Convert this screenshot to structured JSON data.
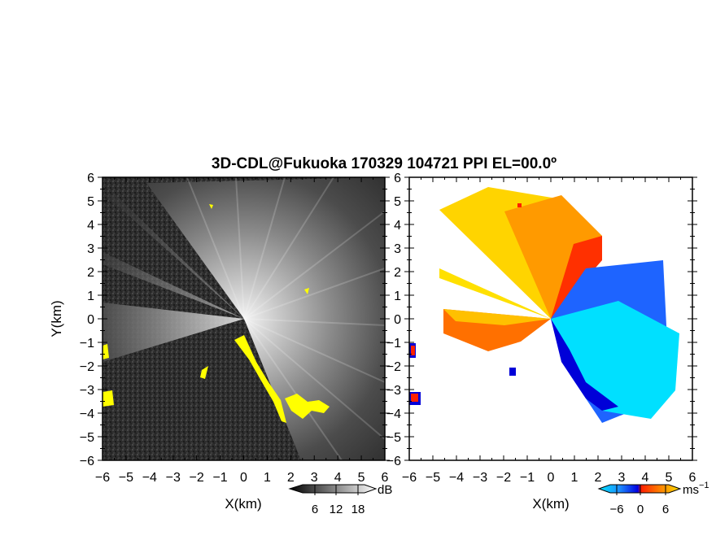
{
  "chart_data": {
    "type": "heatmap",
    "title": "3D-CDL@Fukuoka 170329 104721 PPI EL=00.0º",
    "panels": [
      {
        "id": "left",
        "quantity": "backscatter intensity",
        "colormap": "grayscale with yellow overlay",
        "xlabel": "X(km)",
        "ylabel": "Y(km)",
        "xlim": [
          -6,
          6
        ],
        "ylim": [
          -6,
          6
        ],
        "xticks": [
          "−6",
          "−5",
          "−4",
          "−3",
          "−2",
          "−1",
          "0",
          "1",
          "2",
          "3",
          "4",
          "5",
          "6"
        ],
        "yticks": [
          "6",
          "5",
          "4",
          "3",
          "2",
          "1",
          "0",
          "−1",
          "−2",
          "−3",
          "−4",
          "−5",
          "−6"
        ],
        "colorbar": {
          "unit": "dB",
          "ticks": [
            "6",
            "12",
            "18"
          ],
          "colors": [
            "#000000",
            "#ffffff"
          ]
        },
        "overlay_color": "#ffff00"
      },
      {
        "id": "right",
        "quantity": "radial velocity",
        "colormap": "diverging cyan-blue / red-orange-yellow",
        "xlabel": "X(km)",
        "xlim": [
          -6,
          6
        ],
        "ylim": [
          -6,
          6
        ],
        "xticks": [
          "−6",
          "−5",
          "−4",
          "−3",
          "−2",
          "−1",
          "0",
          "1",
          "2",
          "3",
          "4",
          "5",
          "6"
        ],
        "yticks": [
          "6",
          "5",
          "4",
          "3",
          "2",
          "1",
          "0",
          "−1",
          "−2",
          "−3",
          "−4",
          "−5",
          "−6"
        ],
        "colorbar": {
          "unit": "ms",
          "unit_exp": "−1",
          "ticks": [
            "−6",
            "0",
            "6"
          ],
          "colors": [
            "#00e5ff",
            "#1e90ff",
            "#0000e0",
            "#ff2000",
            "#ff8000",
            "#ffe000"
          ]
        }
      }
    ]
  }
}
